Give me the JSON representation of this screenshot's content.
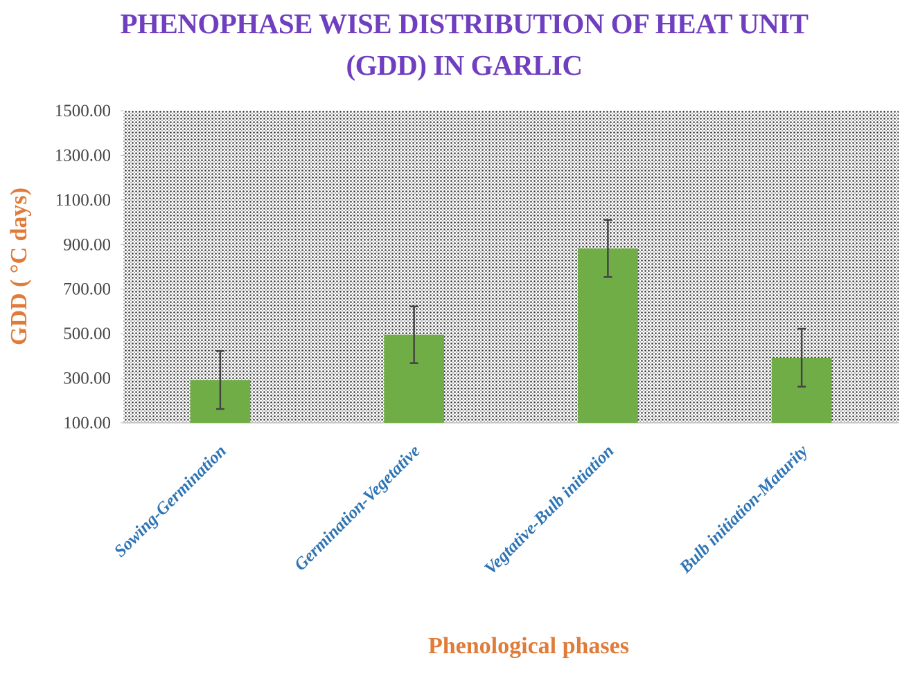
{
  "chart_data": {
    "type": "bar",
    "title": "PHENOPHASE WISE DISTRIBUTION OF  HEAT UNIT (GDD) IN GARLIC",
    "x_label": "Phenological phases",
    "y_label": "GDD ( °C days)",
    "categories": [
      "Sowing-Germination",
      "Germination-Vegetative",
      "Vegtative-Bulb initiation",
      "Bulb initiation-Maturity"
    ],
    "values": [
      292,
      495,
      882,
      392
    ],
    "errors": [
      130,
      127,
      128,
      130
    ],
    "color": "#70ad47",
    "ylim": [
      100,
      1500
    ],
    "yticks": [
      {
        "value": 100,
        "label": "100.00"
      },
      {
        "value": 300,
        "label": "300.00"
      },
      {
        "value": 500,
        "label": "500.00"
      },
      {
        "value": 700,
        "label": "700.00"
      },
      {
        "value": 900,
        "label": "900.00"
      },
      {
        "value": 1100,
        "label": "1100.00"
      },
      {
        "value": 1300,
        "label": "1300.00"
      },
      {
        "value": 1500,
        "label": "1500.00"
      }
    ]
  }
}
